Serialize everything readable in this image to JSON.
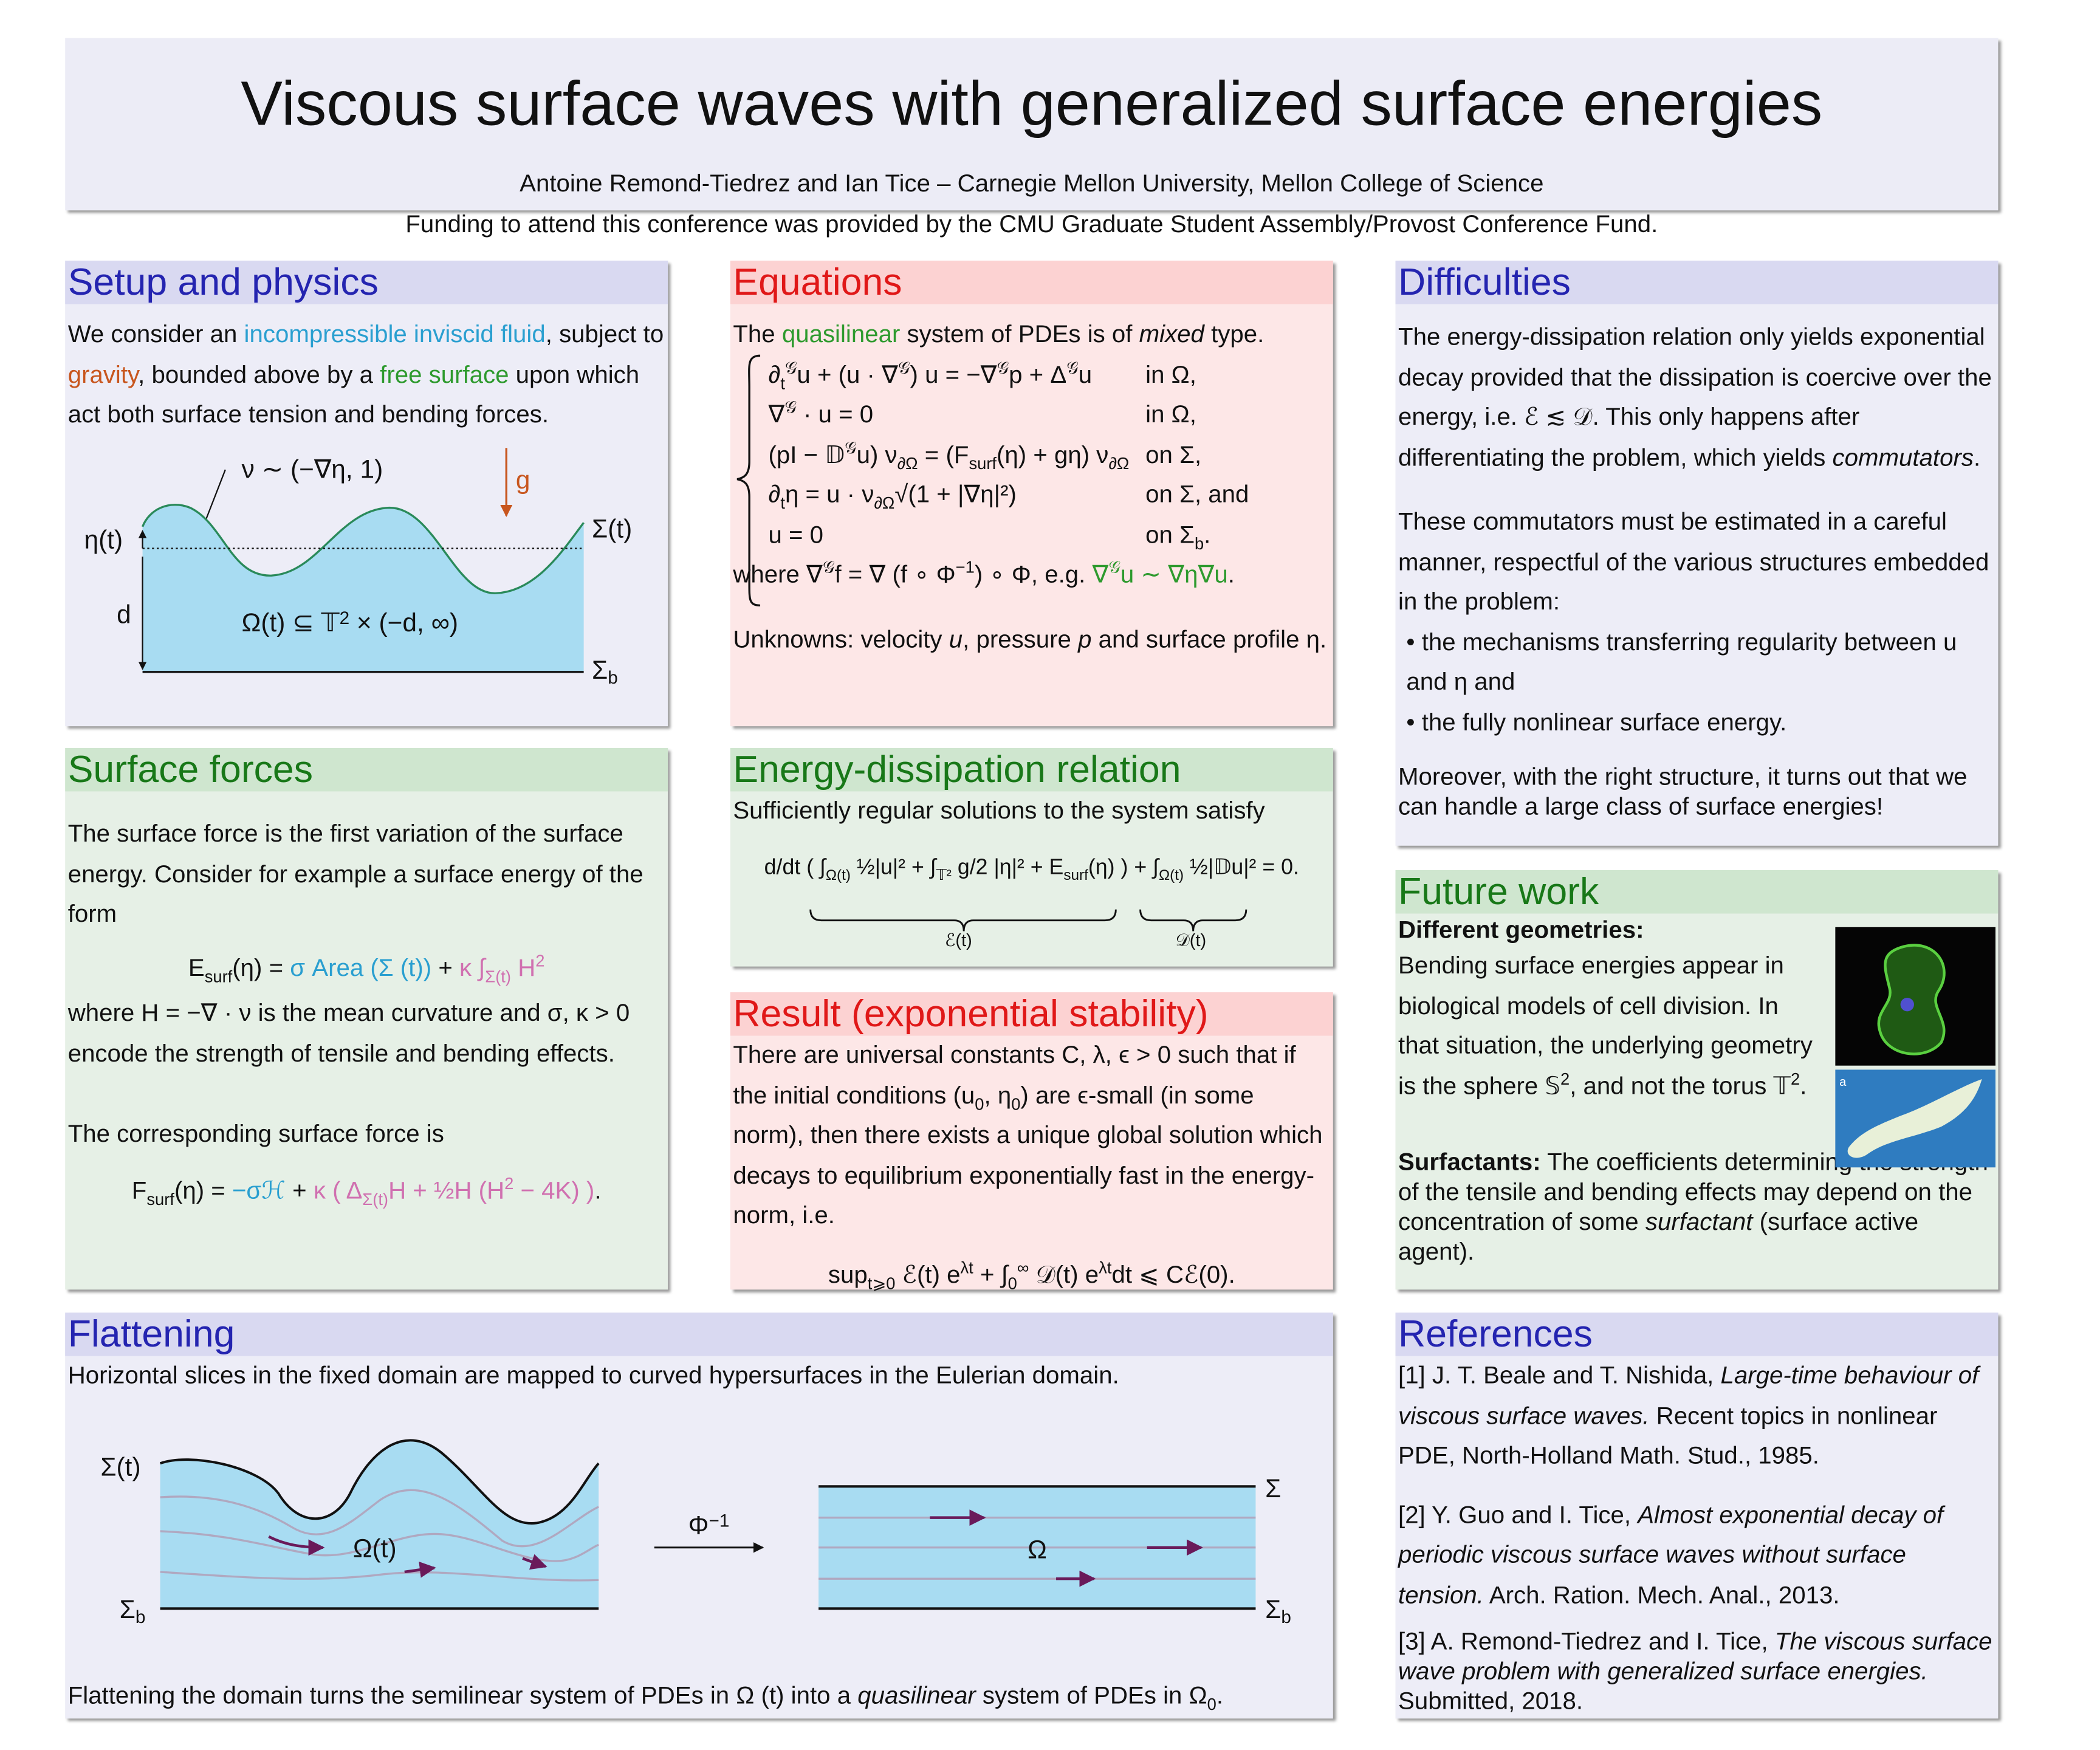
{
  "header": {
    "title": "Viscous surface waves with generalized surface energies",
    "authors": "Antoine Remond-Tiedrez and Ian Tice – Carnegie Mellon University, Mellon College of Science",
    "funding": "Funding to attend this conference was provided by the CMU Graduate Student Assembly/Provost Conference Fund."
  },
  "setup": {
    "heading": "Setup and physics",
    "text": [
      "We consider an ",
      {
        "text": "incompressible inviscid fluid",
        "color": "#2a9fd0"
      },
      ", subject to ",
      {
        "text": "gravity",
        "color": "#c8561e"
      },
      ", bounded above by a ",
      {
        "text": "free surface",
        "color": "#2e9a2e"
      },
      " upon which act both surface tension and bending forces."
    ],
    "figure": {
      "normal": "ν ∼ (−∇η, 1)",
      "gravity": "g",
      "height": "η(t)",
      "depth": "d",
      "domain": [
        "Ω(t) ⊆ 𝕋",
        {
          "sup": "2"
        },
        " × (−d, ∞)"
      ],
      "surface": "Σ(t)",
      "bottom": [
        "Σ",
        {
          "sub": "b"
        }
      ]
    }
  },
  "surface_forces": {
    "heading": "Surface forces",
    "intro": "The surface force is the first variation of the surface energy.  Consider for example a surface energy of the form",
    "energy_formula": [
      "E",
      {
        "sub": "surf"
      },
      "(η) = ",
      {
        "text": "σ Area (Σ (t))",
        "color": "#2a9fd0"
      },
      " + ",
      {
        "text": "κ ∫",
        "color": "#d070b0"
      },
      {
        "sub": "Σ(t)",
        "color": "#d070b0"
      },
      {
        "text": " H",
        "color": "#d070b0"
      },
      {
        "sup": "2",
        "color": "#d070b0"
      }
    ],
    "where": "where H = −∇ · ν is the mean curvature and σ, κ > 0 encode the strength of tensile and bending effects.",
    "force_intro": "The corresponding surface force is",
    "force_formula": [
      "F",
      {
        "sub": "surf"
      },
      "(η) = ",
      {
        "text": "−σℋ",
        "color": "#2a9fd0"
      },
      " + ",
      {
        "text": "κ ( Δ",
        "color": "#d070b0"
      },
      {
        "sub": "Σ(t)",
        "color": "#d070b0"
      },
      {
        "text": "H + ½H (H",
        "color": "#d070b0"
      },
      {
        "sup": "2",
        "color": "#d070b0"
      },
      {
        "text": " − 4K) )",
        "color": "#d070b0"
      },
      "."
    ]
  },
  "equations": {
    "heading": "Equations",
    "intro": [
      "The ",
      {
        "text": "quasilinear",
        "color": "#2e9a2e"
      },
      " system of PDEs is of ",
      {
        "text": "mixed",
        "italic": true
      },
      " type."
    ],
    "system": [
      {
        "eq": [
          "∂",
          {
            "sub": "t"
          },
          {
            "sup": "𝒢"
          },
          "u + (u · ∇",
          {
            "sup": "𝒢"
          },
          ") u = −∇",
          {
            "sup": "𝒢"
          },
          "p + Δ",
          {
            "sup": "𝒢"
          },
          "u"
        ],
        "cond": [
          "in Ω,"
        ]
      },
      {
        "eq": [
          "∇",
          {
            "sup": "𝒢"
          },
          " · u = 0"
        ],
        "cond": [
          "in Ω,"
        ]
      },
      {
        "eq": [
          "(pI − 𝔻",
          {
            "sup": "𝒢"
          },
          "u) ν",
          {
            "sub": "∂Ω"
          },
          " = (F",
          {
            "sub": "surf"
          },
          "(η) + gη) ν",
          {
            "sub": "∂Ω"
          }
        ],
        "cond": [
          "on Σ,"
        ]
      },
      {
        "eq": [
          "∂",
          {
            "sub": "t"
          },
          "η = u · ν",
          {
            "sub": "∂Ω"
          },
          "√(1 + |∇η|²)"
        ],
        "cond": [
          "on Σ, and"
        ]
      },
      {
        "eq": [
          "u = 0"
        ],
        "cond": [
          "on Σ",
          {
            "sub": "b"
          },
          "."
        ]
      }
    ],
    "where": [
      "where ∇",
      {
        "sup": "𝒢"
      },
      "f = ∇ (f ∘ Φ",
      {
        "sup": "−1"
      },
      ") ∘ Φ, e.g. ",
      {
        "text": "∇",
        "color": "#2e9a2e"
      },
      {
        "sup": "𝒢",
        "color": "#2e9a2e"
      },
      {
        "text": "u ∼ ∇η∇u",
        "color": "#2e9a2e"
      },
      "."
    ],
    "unknowns": [
      "Unknowns: velocity ",
      {
        "text": "u",
        "italic": true
      },
      ", pressure ",
      {
        "text": "p",
        "italic": true
      },
      " and surface profile η."
    ]
  },
  "energy": {
    "heading": "Energy-dissipation relation",
    "intro": "Sufficiently regular solutions to the system satisfy",
    "formula": [
      "d/dt ( ∫",
      {
        "sub": "Ω(t)"
      },
      " ½|u|² + ∫",
      {
        "sub": "𝕋²"
      },
      " g/2 |η|² + E",
      {
        "sub": "surf"
      },
      "(η) ) + ∫",
      {
        "sub": "Ω(t)"
      },
      " ½|𝔻u|² = 0."
    ],
    "energy_label": "ℰ(t)",
    "dissipation_label": "𝒟(t)"
  },
  "result": {
    "heading": "Result (exponential stability)",
    "text": [
      "There are universal constants C, λ, ϵ > 0 such that if the initial conditions (u",
      {
        "sub": "0"
      },
      ", η",
      {
        "sub": "0"
      },
      ") are ϵ-small (in some norm), then there exists a unique global solution which decays to equilibrium exponentially fast in the energy-norm, i.e."
    ],
    "formula": [
      "sup",
      {
        "sub": "t⩾0"
      },
      " ℰ(t) e",
      {
        "sup": "λt"
      },
      " + ∫",
      {
        "sub": "0"
      },
      {
        "sup": "∞"
      },
      " 𝒟(t) e",
      {
        "sup": "λt"
      },
      "dt ⩽ Cℰ(0)."
    ]
  },
  "difficulties": {
    "heading": "Difficulties",
    "p1": [
      "The energy-dissipation relation only yields exponential decay provided that the dissipation is coercive over the energy, i.e. ℰ ≲ 𝒟.  This only happens after differentiating the problem, which yields ",
      {
        "text": "commutators",
        "italic": true
      },
      "."
    ],
    "p2": "These commutators must be estimated in a careful manner, respectful of the various structures embedded in the problem:",
    "bullets": [
      "the mechanisms transferring regularity between u and η and",
      "the fully nonlinear surface energy."
    ],
    "p3": "Moreover, with the right structure, it turns out that we can handle a large class of surface energies!"
  },
  "future": {
    "heading": "Future work",
    "subheading": "Different geometries:",
    "geometries": [
      "Bending surface energies appear in biological models of cell division.  In that situation, the underlying geometry is the sphere 𝕊",
      {
        "sup": "2"
      },
      ", and not the torus 𝕋",
      {
        "sup": "2"
      },
      "."
    ],
    "image_label": "a",
    "surfactants": [
      {
        "text": "Surfactants:",
        "bold": true
      },
      " The coefficients determining the strength of the tensile and bending effects may depend on the concentration of some ",
      {
        "text": "surfactant",
        "italic": true
      },
      " (surface active agent)."
    ]
  },
  "flattening": {
    "heading": "Flattening",
    "intro": "Horizontal slices in the fixed domain are mapped to curved hypersurfaces in the Eulerian domain.",
    "figure": {
      "surface": "Σ(t)",
      "bottom": [
        "Σ",
        {
          "sub": "b"
        }
      ],
      "domain": "Ω(t)",
      "map": [
        "Φ",
        {
          "sup": "−1"
        }
      ],
      "fixed_domain": "Ω",
      "fixed_top": "Σ",
      "fixed_bottom": [
        "Σ",
        {
          "sub": "b"
        }
      ]
    },
    "conclusion": [
      "Flattening the domain turns the semilinear system of PDEs in Ω (t) into a ",
      {
        "text": "quasilinear",
        "italic": true
      },
      " system of PDEs in Ω",
      {
        "sub": "0"
      },
      "."
    ]
  },
  "references": {
    "heading": "References",
    "items": [
      [
        "[1] J. T. Beale and T. Nishida, ",
        {
          "text": "Large-time behaviour of viscous surface waves.",
          "italic": true
        },
        " Recent topics in nonlinear PDE, North-Holland Math. Stud., 1985."
      ],
      [
        "[2] Y. Guo and I. Tice, ",
        {
          "text": "Almost exponential decay of periodic viscous surface waves without surface tension.",
          "italic": true
        },
        " Arch. Ration. Mech. Anal., 2013."
      ],
      [
        "[3] A. Remond-Tiedrez and I. Tice, ",
        {
          "text": "The viscous surface wave problem with generalized surface energies.",
          "italic": true
        },
        " Submitted, 2018."
      ]
    ]
  }
}
